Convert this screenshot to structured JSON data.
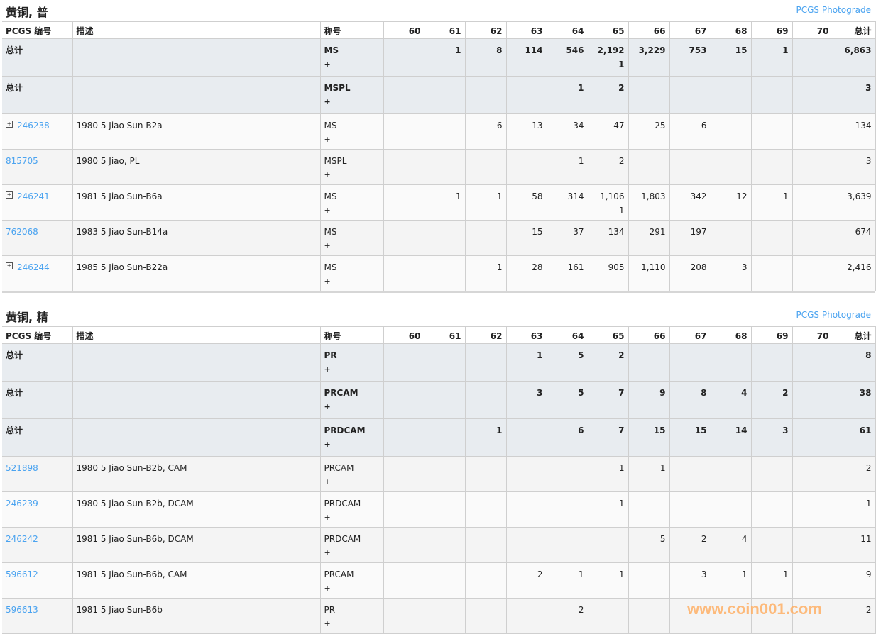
{
  "columns": [
    "PCGS 编号",
    "描述",
    "称号",
    "60",
    "61",
    "62",
    "63",
    "64",
    "65",
    "66",
    "67",
    "68",
    "69",
    "70",
    "总计"
  ],
  "sections": [
    {
      "title": "黄铜, 普",
      "link": "PCGS Photograde",
      "rows": [
        {
          "type": "total",
          "id": "总计",
          "desc": "",
          "designation": "MS",
          "plus": "+",
          "grades": [
            "",
            "1",
            "8",
            "114",
            "546",
            "2,192\n1",
            "3,229",
            "753",
            "15",
            "1",
            ""
          ],
          "total": "6,863"
        },
        {
          "type": "total",
          "id": "总计",
          "desc": "",
          "designation": "MSPL",
          "plus": "+",
          "grades": [
            "",
            "",
            "",
            "",
            "1",
            "2",
            "",
            "",
            "",
            "",
            ""
          ],
          "total": "3"
        },
        {
          "type": "data",
          "expand": true,
          "id": "246238",
          "desc": "1980 5 Jiao Sun-B2a",
          "designation": "MS",
          "plus": "+",
          "grades": [
            "",
            "",
            "6",
            "13",
            "34",
            "47",
            "25",
            "6",
            "",
            "",
            ""
          ],
          "total": "134"
        },
        {
          "type": "data",
          "expand": false,
          "id": "815705",
          "desc": "1980 5 Jiao, PL",
          "designation": "MSPL",
          "plus": "+",
          "grades": [
            "",
            "",
            "",
            "",
            "1",
            "2",
            "",
            "",
            "",
            "",
            ""
          ],
          "total": "3"
        },
        {
          "type": "data",
          "expand": true,
          "id": "246241",
          "desc": "1981 5 Jiao Sun-B6a",
          "designation": "MS",
          "plus": "+",
          "grades": [
            "",
            "1",
            "1",
            "58",
            "314",
            "1,106\n1",
            "1,803",
            "342",
            "12",
            "1",
            ""
          ],
          "total": "3,639"
        },
        {
          "type": "data",
          "expand": false,
          "id": "762068",
          "desc": "1983 5 Jiao Sun-B14a",
          "designation": "MS",
          "plus": "+",
          "grades": [
            "",
            "",
            "",
            "15",
            "37",
            "134",
            "291",
            "197",
            "",
            "",
            ""
          ],
          "total": "674"
        },
        {
          "type": "data",
          "expand": true,
          "id": "246244",
          "desc": "1985 5 Jiao Sun-B22a",
          "designation": "MS",
          "plus": "+",
          "grades": [
            "",
            "",
            "1",
            "28",
            "161",
            "905",
            "1,110",
            "208",
            "3",
            "",
            ""
          ],
          "total": "2,416"
        }
      ]
    },
    {
      "title": "黄铜, 精",
      "link": "PCGS Photograde",
      "rows": [
        {
          "type": "total",
          "id": "总计",
          "desc": "",
          "designation": "PR",
          "plus": "+",
          "grades": [
            "",
            "",
            "",
            "1",
            "5",
            "2",
            "",
            "",
            "",
            "",
            ""
          ],
          "total": "8"
        },
        {
          "type": "total",
          "id": "总计",
          "desc": "",
          "designation": "PRCAM",
          "plus": "+",
          "grades": [
            "",
            "",
            "",
            "3",
            "5",
            "7",
            "9",
            "8",
            "4",
            "2",
            ""
          ],
          "total": "38"
        },
        {
          "type": "total",
          "id": "总计",
          "desc": "",
          "designation": "PRDCAM",
          "plus": "+",
          "grades": [
            "",
            "",
            "1",
            "",
            "6",
            "7",
            "15",
            "15",
            "14",
            "3",
            ""
          ],
          "total": "61"
        },
        {
          "type": "data",
          "expand": false,
          "id": "521898",
          "desc": "1980 5 Jiao Sun-B2b, CAM",
          "designation": "PRCAM",
          "plus": "+",
          "grades": [
            "",
            "",
            "",
            "",
            "",
            "1",
            "1",
            "",
            "",
            "",
            ""
          ],
          "total": "2"
        },
        {
          "type": "data",
          "expand": false,
          "id": "246239",
          "desc": "1980 5 Jiao Sun-B2b, DCAM",
          "designation": "PRDCAM",
          "plus": "+",
          "grades": [
            "",
            "",
            "",
            "",
            "",
            "1",
            "",
            "",
            "",
            "",
            ""
          ],
          "total": "1"
        },
        {
          "type": "data",
          "expand": false,
          "id": "246242",
          "desc": "1981 5 Jiao Sun-B6b, DCAM",
          "designation": "PRDCAM",
          "plus": "+",
          "grades": [
            "",
            "",
            "",
            "",
            "",
            "",
            "5",
            "2",
            "4",
            "",
            ""
          ],
          "total": "11"
        },
        {
          "type": "data",
          "expand": false,
          "id": "596612",
          "desc": "1981 5 Jiao Sun-B6b, CAM",
          "designation": "PRCAM",
          "plus": "+",
          "grades": [
            "",
            "",
            "",
            "2",
            "1",
            "1",
            "",
            "3",
            "1",
            "1",
            ""
          ],
          "total": "9"
        },
        {
          "type": "data",
          "expand": false,
          "id": "596613",
          "desc": "1981 5 Jiao Sun-B6b",
          "designation": "PR",
          "plus": "+",
          "grades": [
            "",
            "",
            "",
            "",
            "2",
            "",
            "",
            "",
            "",
            "",
            ""
          ],
          "total": "2"
        }
      ]
    }
  ],
  "watermark": "www.coin001.com",
  "colors": {
    "link": "#4aa3f0",
    "total_row_bg": "#e8ecf0",
    "watermark": "#ffb066"
  }
}
